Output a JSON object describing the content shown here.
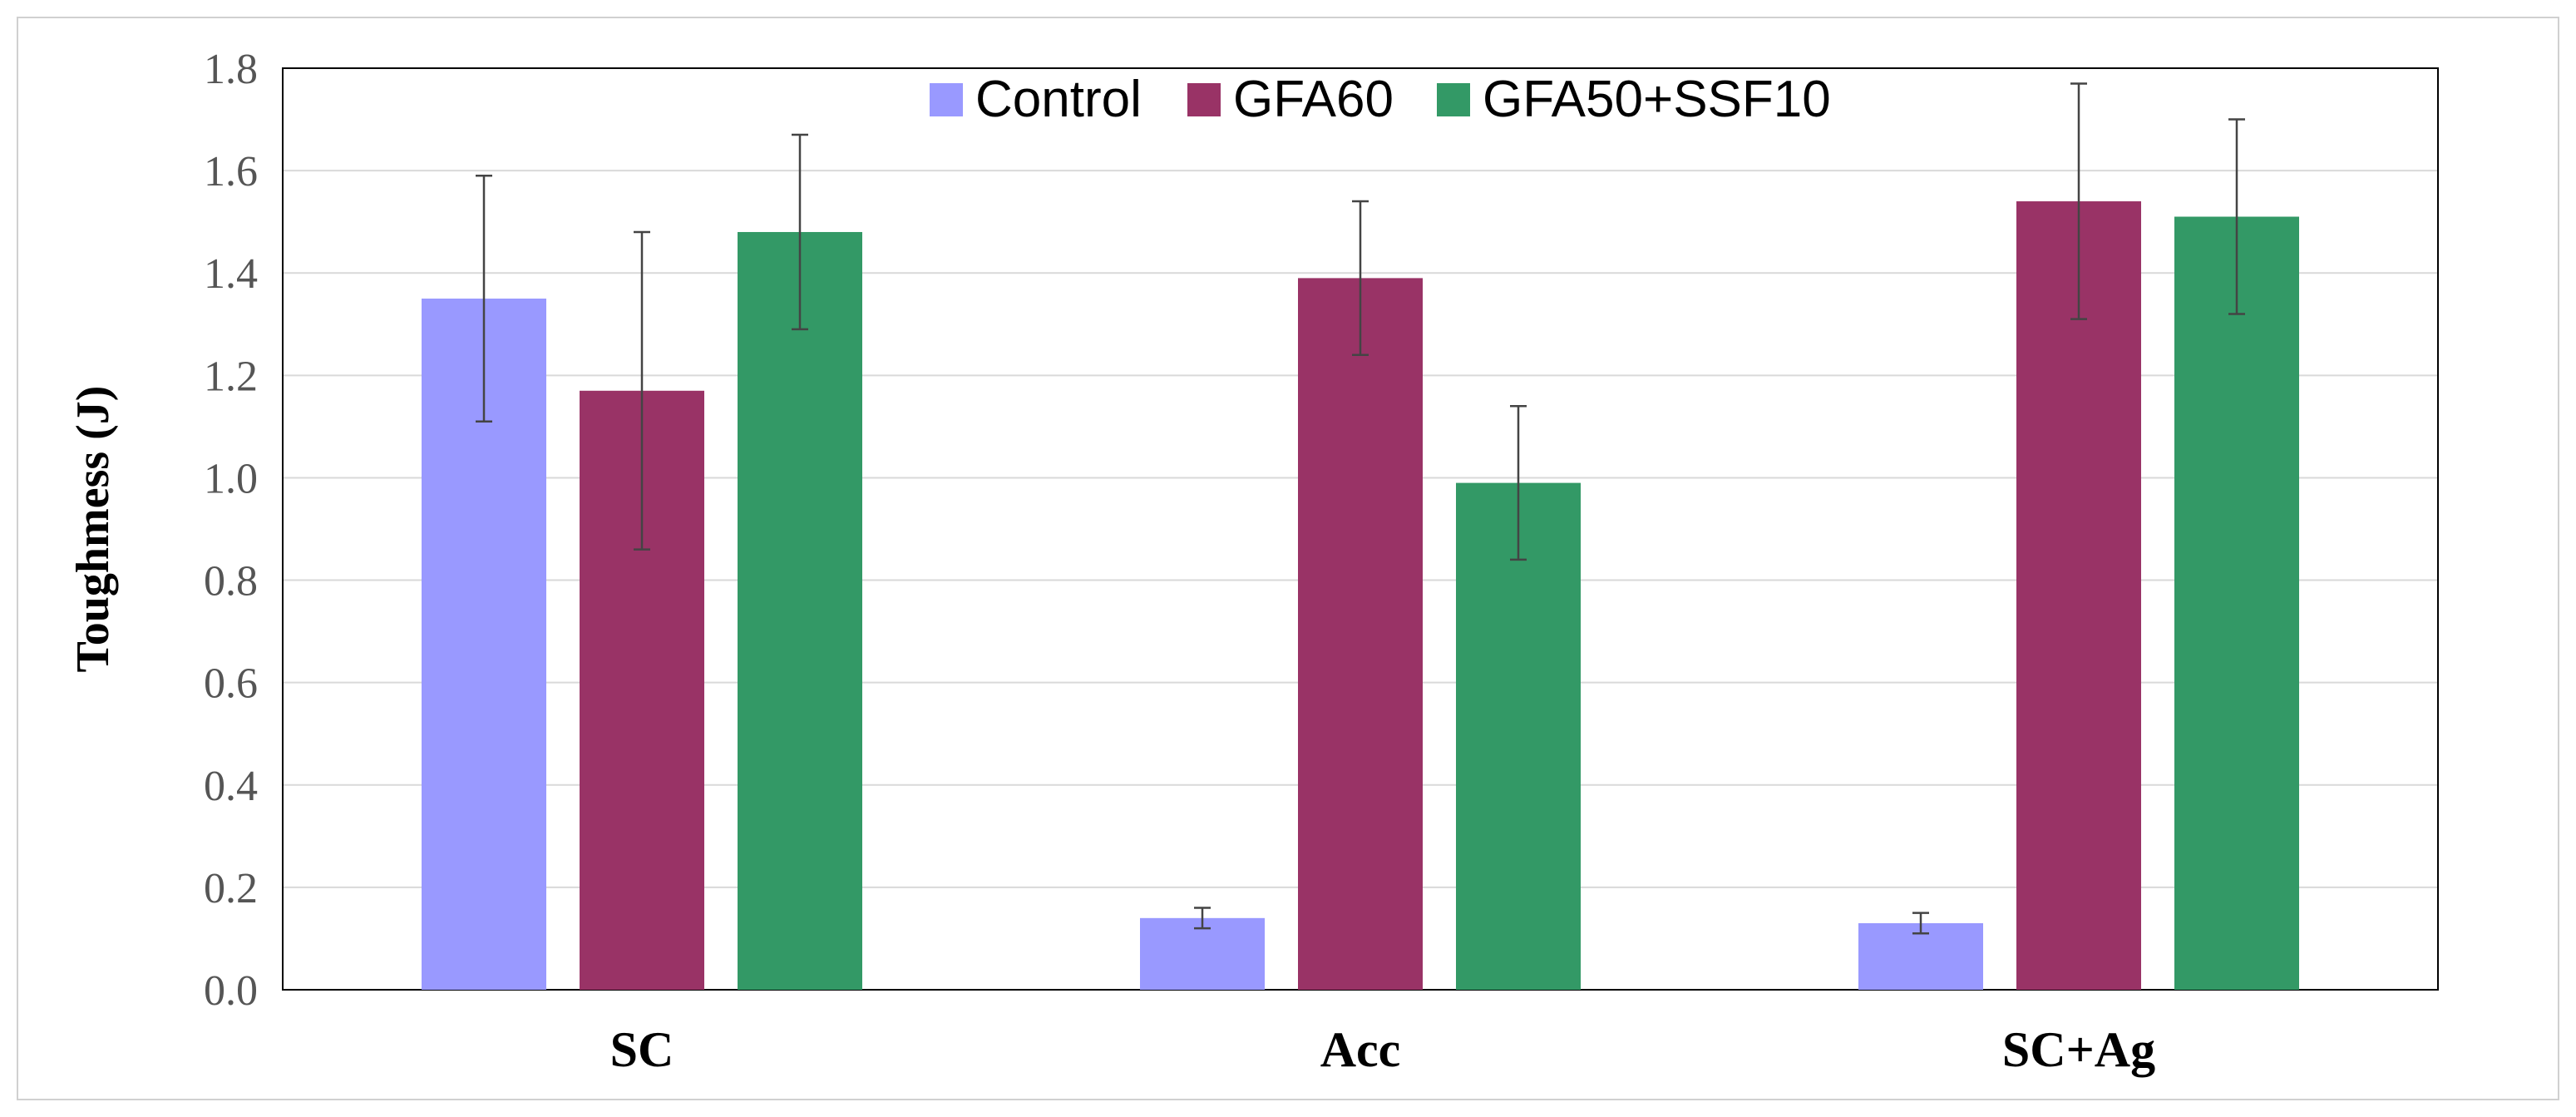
{
  "chart_data": {
    "type": "bar",
    "title": "",
    "xlabel": "",
    "ylabel": "Toughmess (J)",
    "categories": [
      "SC",
      "Acc",
      "SC+Ag"
    ],
    "ylim": [
      0,
      1.8
    ],
    "yticks": [
      0.0,
      0.2,
      0.4,
      0.6,
      0.8,
      1.0,
      1.2,
      1.4,
      1.6,
      1.8
    ],
    "ytick_labels": [
      "0.0",
      "0.2",
      "0.4",
      "0.6",
      "0.8",
      "1.0",
      "1.2",
      "1.4",
      "1.6",
      "1.8"
    ],
    "grid": true,
    "legend_position": "top-center",
    "series": [
      {
        "name": "Control",
        "color": "#9999ff",
        "values": [
          1.35,
          0.14,
          0.13
        ],
        "errors": [
          0.24,
          0.02,
          0.02
        ]
      },
      {
        "name": "GFA60",
        "color": "#993366",
        "values": [
          1.17,
          1.39,
          1.54
        ],
        "errors": [
          0.31,
          0.15,
          0.23
        ]
      },
      {
        "name": "GFA50+SSF10",
        "color": "#339966",
        "values": [
          1.48,
          0.99,
          1.51
        ],
        "errors": [
          0.19,
          0.15,
          0.19
        ]
      }
    ]
  }
}
